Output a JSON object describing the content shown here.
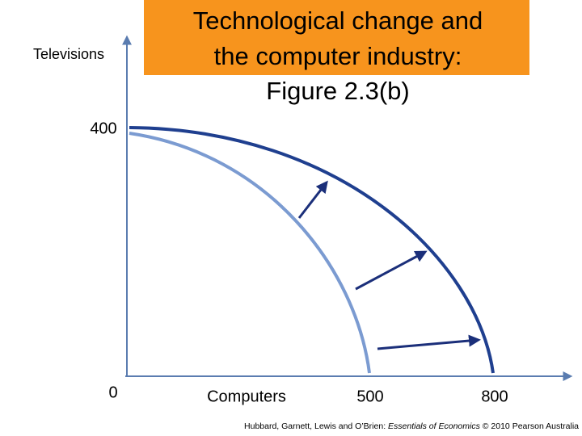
{
  "title": [
    "Technological change and",
    "the computer industry:",
    "Figure 2.3(b)"
  ],
  "axes": {
    "y_label": "Televisions",
    "x_label": "Computers"
  },
  "tick_labels": {
    "y_top": "400",
    "origin": "0",
    "x_inner": "500",
    "x_outer": "800"
  },
  "caption": {
    "before": "Hubbard, Garnett, Lewis and O’Brien: ",
    "italic": "Essentials of Economics",
    "after": " © 2010 Pearson Australia"
  }
}
